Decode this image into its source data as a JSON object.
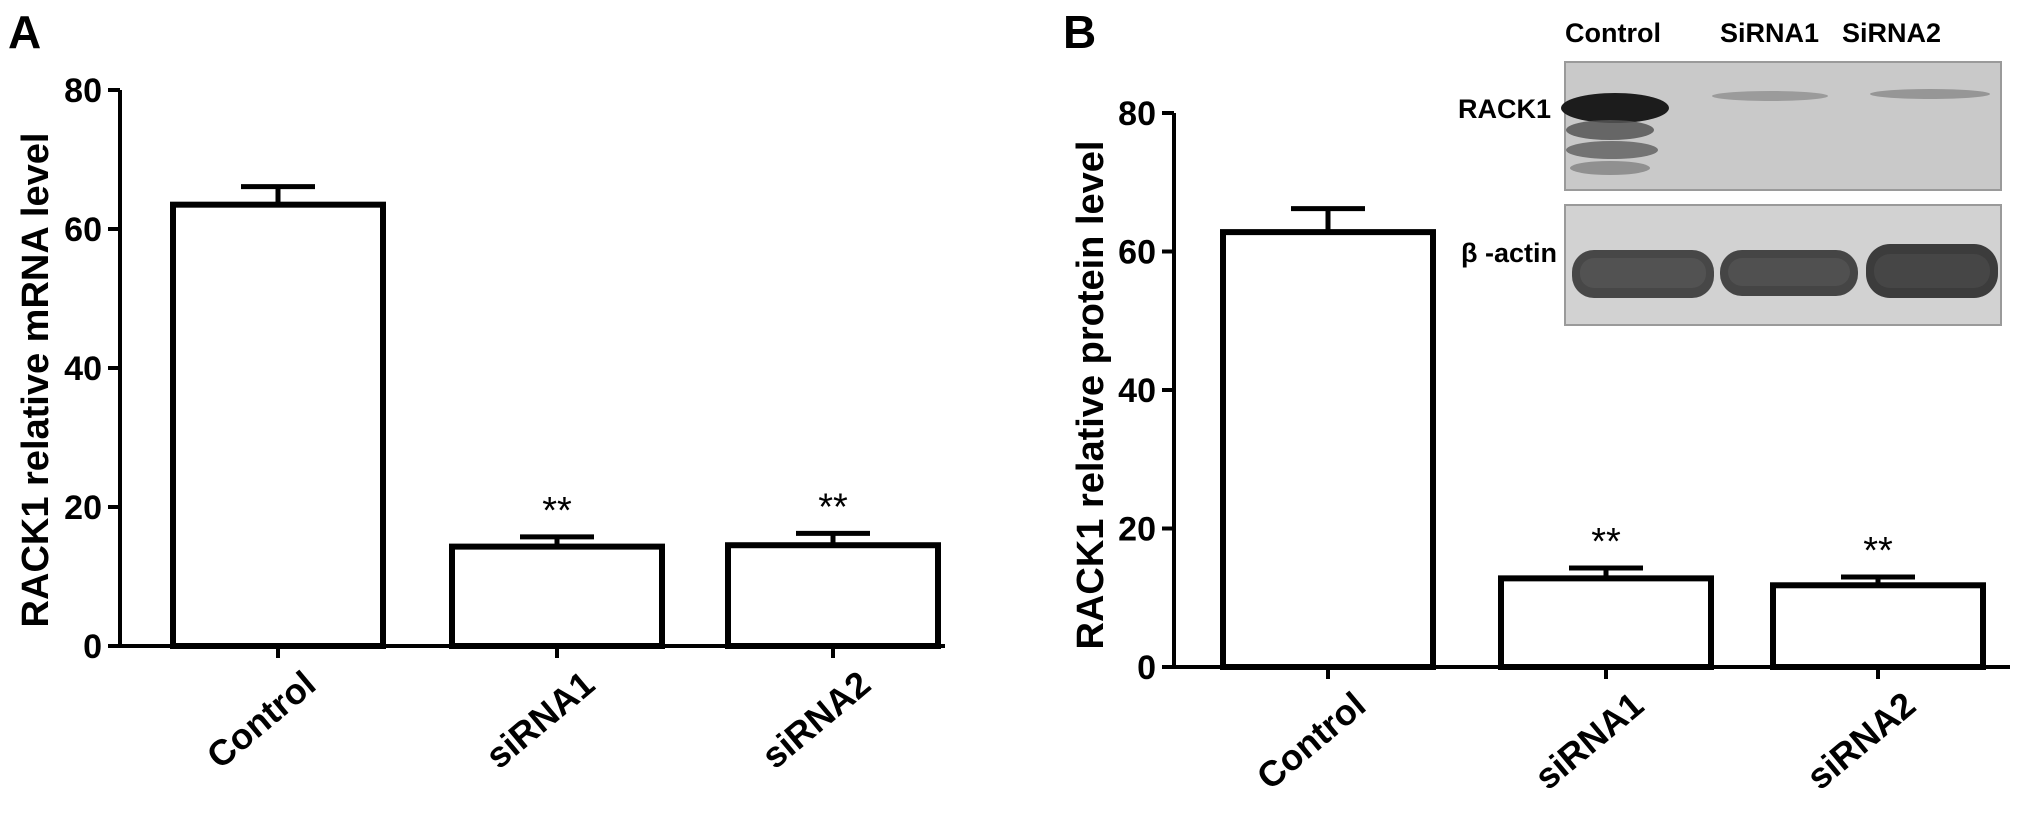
{
  "chart_data": [
    {
      "panel": "A",
      "type": "bar",
      "ylabel": "RACK1 relative mRNA level",
      "ylim": [
        0,
        80
      ],
      "yticks": [
        0,
        20,
        40,
        60,
        80
      ],
      "categories": [
        "Control",
        "siRNA1",
        "siRNA2"
      ],
      "values": [
        63.5,
        14.3,
        14.5
      ],
      "errors": [
        2.6,
        1.4,
        1.7
      ],
      "annotations": [
        "",
        "**",
        "**"
      ]
    },
    {
      "panel": "B",
      "type": "bar",
      "ylabel": "RACK1 relative protein level",
      "ylim": [
        0,
        80
      ],
      "yticks": [
        0,
        20,
        40,
        60,
        80
      ],
      "categories": [
        "Control",
        "siRNA1",
        "siRNA2"
      ],
      "values": [
        62.8,
        12.8,
        11.8
      ],
      "errors": [
        3.4,
        1.5,
        1.2
      ],
      "annotations": [
        "",
        "**",
        "**"
      ],
      "inset": {
        "lane_labels": [
          "Control",
          "SiRNA1",
          "SiRNA2"
        ],
        "band_labels": [
          "RACK1",
          "β -actin"
        ]
      }
    }
  ]
}
